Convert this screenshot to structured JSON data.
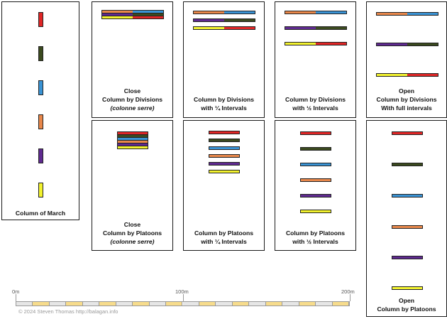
{
  "colors": {
    "red": "#e02626",
    "green": "#3b4a1f",
    "blue": "#3a93d4",
    "orange": "#e8874a",
    "purple": "#5f2a90",
    "yellow": "#f2f22e"
  },
  "panels": {
    "column_of_march": {
      "caption": [
        "Column of March"
      ]
    },
    "close_divisions": {
      "caption": [
        "Close",
        "Column by Divisions"
      ],
      "caption_italic": "(colonne serre)"
    },
    "quarter_divisions": {
      "caption": [
        "Column by Divisions",
        "with ¼ Intervals"
      ]
    },
    "half_divisions": {
      "caption": [
        "Column by Divisions",
        "with ½ Intervals"
      ]
    },
    "open_divisions": {
      "caption": [
        "Open",
        "Column by Divisions",
        "With full intervals"
      ]
    },
    "close_platoons": {
      "caption": [
        "Close",
        "Column by Platoons"
      ],
      "caption_italic": "(colonne serre)"
    },
    "quarter_platoons": {
      "caption": [
        "Column by Platoons",
        "with ¼ Intervals"
      ]
    },
    "half_platoons": {
      "caption": [
        "Column by Platoons",
        "with ½ Intervals"
      ]
    },
    "open_platoons": {
      "caption": [
        "Open",
        "Column by Platoons"
      ]
    }
  },
  "scale": {
    "labels": [
      "0m",
      "100m",
      "200m"
    ]
  },
  "copyright": "© 2024 Steven Thomas http://balagan.info"
}
